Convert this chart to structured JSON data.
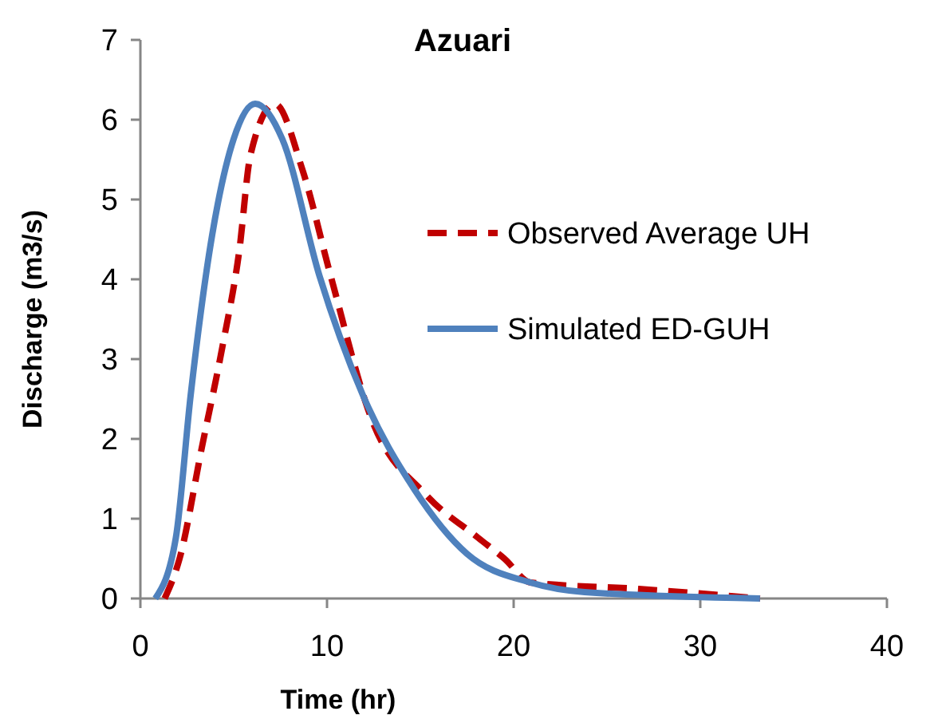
{
  "chart_data": {
    "type": "line",
    "title": "Azuari",
    "xlabel": "Time (hr)",
    "ylabel": "Discharge (m3/s)",
    "xlim": [
      0,
      40
    ],
    "xticks": [
      0,
      10,
      20,
      30,
      40
    ],
    "ylim": [
      0,
      7
    ],
    "yticks": [
      0,
      1,
      2,
      3,
      4,
      5,
      6,
      7
    ],
    "grid": false,
    "legend": "right",
    "series": [
      {
        "name": "Observed Average UH",
        "color": "#c00000",
        "line_style": "dashed",
        "x": [
          1.3,
          2.1,
          3.3,
          4.4,
          5.3,
          5.9,
          7.2,
          8.7,
          10.2,
          12.4,
          15.3,
          18.1,
          19.5,
          20.9,
          26.7,
          33.2
        ],
        "values": [
          0,
          0.5,
          1.9,
          3.16,
          4.36,
          5.56,
          6.2,
          5.36,
          4.04,
          2.24,
          1.3,
          0.76,
          0.5,
          0.2,
          0.12,
          0
        ]
      },
      {
        "name": "Simulated ED-GUH",
        "color": "#4f81bd",
        "line_style": "solid",
        "x": [
          0.8,
          1.9,
          2.7,
          3.85,
          5.0,
          6.15,
          7.6,
          9.6,
          11.9,
          14.7,
          17.5,
          20.9,
          23.8,
          33.2
        ],
        "values": [
          0,
          0.76,
          2.56,
          4.56,
          5.76,
          6.2,
          5.76,
          4.04,
          2.56,
          1.36,
          0.56,
          0.2,
          0.08,
          0
        ]
      }
    ]
  }
}
